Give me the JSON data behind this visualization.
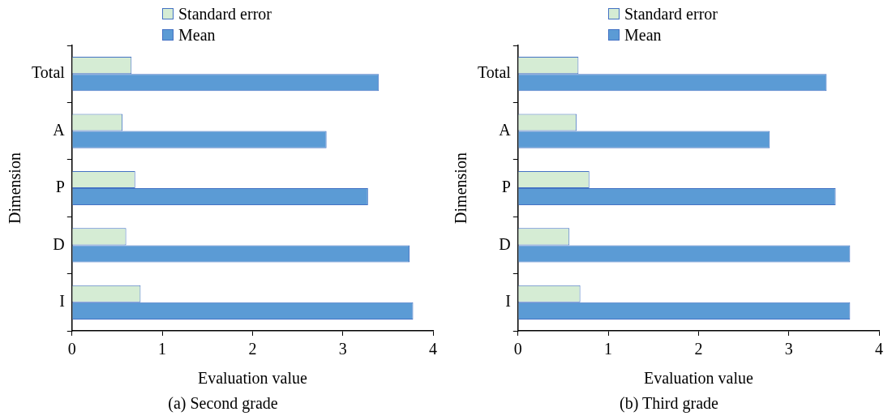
{
  "chart_data": [
    {
      "type": "bar",
      "orientation": "horizontal",
      "categories": [
        "Total",
        "A",
        "P",
        "D",
        "I"
      ],
      "series": [
        {
          "name": "Standard error",
          "color": "#d5ecd4",
          "values": [
            0.66,
            0.56,
            0.7,
            0.6,
            0.76
          ]
        },
        {
          "name": "Mean",
          "color": "#5b9bd5",
          "values": [
            3.4,
            2.82,
            3.28,
            3.74,
            3.78
          ]
        }
      ],
      "xlim": [
        0,
        4
      ],
      "xticks": [
        0,
        1,
        2,
        3,
        4
      ],
      "xlabel": "Evaluation value",
      "ylabel": "Dimension",
      "legend": "top",
      "annotations": [
        "(a) Second grade"
      ]
    },
    {
      "type": "bar",
      "orientation": "horizontal",
      "categories": [
        "Total",
        "A",
        "P",
        "D",
        "I"
      ],
      "series": [
        {
          "name": "Standard error",
          "color": "#d5ecd4",
          "values": [
            0.67,
            0.65,
            0.79,
            0.57,
            0.69
          ]
        },
        {
          "name": "Mean",
          "color": "#5b9bd5",
          "values": [
            3.42,
            2.79,
            3.52,
            3.68,
            3.68
          ]
        }
      ],
      "xlim": [
        0,
        4
      ],
      "xticks": [
        0,
        1,
        2,
        3,
        4
      ],
      "xlabel": "Evaluation value",
      "ylabel": "Dimension",
      "legend": "top",
      "annotations": [
        "(b) Third grade"
      ]
    }
  ]
}
